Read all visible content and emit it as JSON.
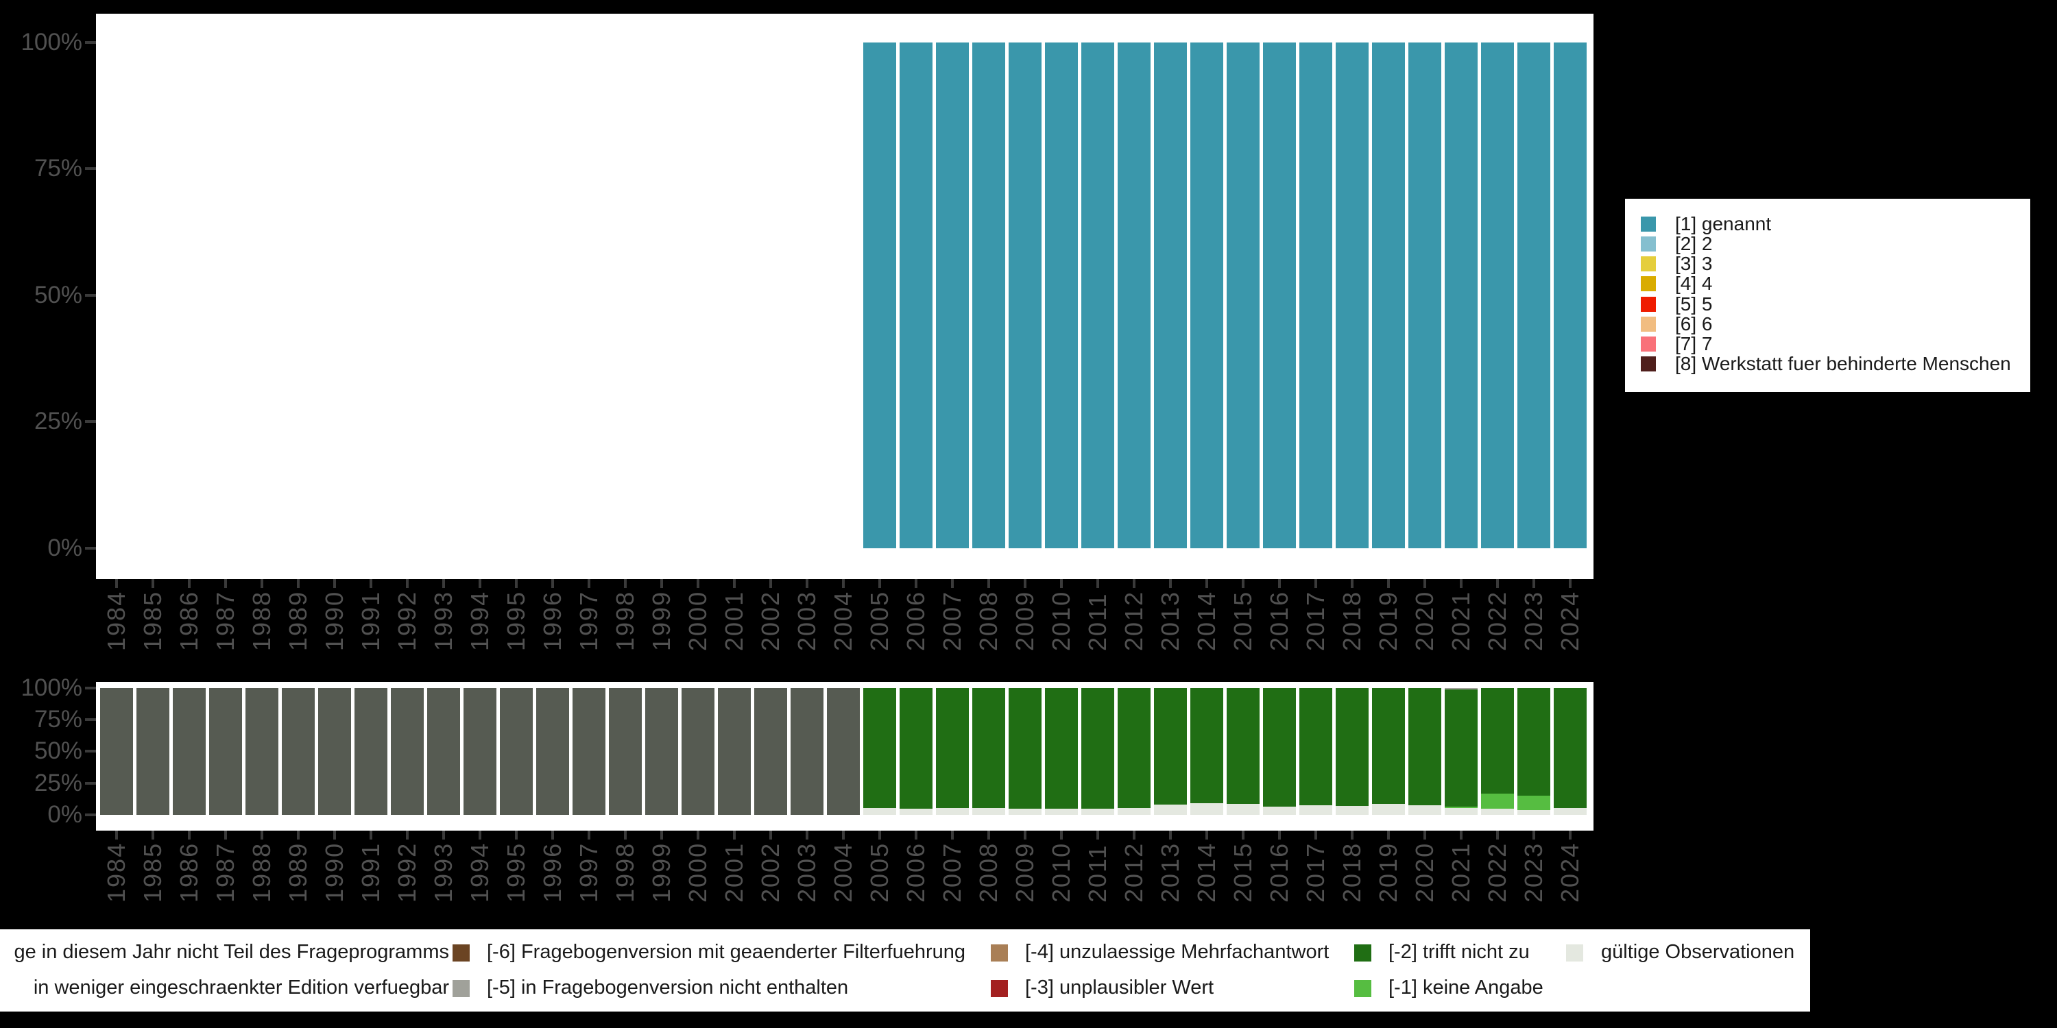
{
  "years": [
    "1984",
    "1985",
    "1986",
    "1987",
    "1988",
    "1989",
    "1990",
    "1991",
    "1992",
    "1993",
    "1994",
    "1995",
    "1996",
    "1997",
    "1998",
    "1999",
    "2000",
    "2001",
    "2002",
    "2003",
    "2004",
    "2005",
    "2006",
    "2007",
    "2008",
    "2009",
    "2010",
    "2011",
    "2012",
    "2013",
    "2014",
    "2015",
    "2016",
    "2017",
    "2018",
    "2019",
    "2020",
    "2021",
    "2022",
    "2023",
    "2024"
  ],
  "y_tick_labels": [
    "100%",
    "75%",
    "50%",
    "25%",
    "0%"
  ],
  "colors": {
    "background": "#000000",
    "panel": "#ffffff",
    "axis_text": "#515151",
    "tick_mark": "#3a3a3a",
    "legend_text": "#1a1a1a"
  },
  "top_legend": {
    "items": [
      {
        "label": "[1] genannt",
        "color": "#3A97AB"
      },
      {
        "label": "[2] 2",
        "color": "#85BFCF"
      },
      {
        "label": "[3] 3",
        "color": "#E5CE3C"
      },
      {
        "label": "[4] 4",
        "color": "#D9AC00"
      },
      {
        "label": "[5] 5",
        "color": "#EF1C00"
      },
      {
        "label": "[6] 6",
        "color": "#F1BD81"
      },
      {
        "label": "[7] 7",
        "color": "#F97179"
      },
      {
        "label": "[8] Werkstatt fuer behinderte Menschen",
        "color": "#4F1F1C"
      }
    ]
  },
  "bottom_legend": {
    "rows": [
      [
        {
          "label": "ge in diesem Jahr nicht Teil des Frageprogramms",
          "color": null,
          "col": 0
        },
        {
          "label": "[-6] Fragebogenversion mit geaenderter Filterfuehrung",
          "color": "#6B4423",
          "col": 1
        },
        {
          "label": "[-4] unzulaessige Mehrfachantwort",
          "color": "#A97F56",
          "col": 2
        },
        {
          "label": "[-2] trifft nicht zu",
          "color": "#206E14",
          "col": 3
        },
        {
          "label": "gültige Observationen",
          "color": "#E4E8E0",
          "col": 4
        }
      ],
      [
        {
          "label": "in weniger eingeschraenkter Edition verfuegbar",
          "color": null,
          "col": 0
        },
        {
          "label": "[-5] in Fragebogenversion nicht enthalten",
          "color": "#A0A19A",
          "col": 1
        },
        {
          "label": "[-3] unplausibler Wert",
          "color": "#A32020",
          "col": 2
        },
        {
          "label": "[-1] keine Angabe",
          "color": "#56BD41",
          "col": 3
        }
      ]
    ]
  },
  "chart_data": [
    {
      "type": "bar",
      "stacked": true,
      "stack_order": "bottom_to_top",
      "title": "",
      "xlabel": "",
      "ylabel": "",
      "ylim": [
        0,
        100
      ],
      "y_ticks_percent": [
        0,
        25,
        50,
        75,
        100
      ],
      "grid": false,
      "legend_position": "right",
      "categories": [
        "1984",
        "1985",
        "1986",
        "1987",
        "1988",
        "1989",
        "1990",
        "1991",
        "1992",
        "1993",
        "1994",
        "1995",
        "1996",
        "1997",
        "1998",
        "1999",
        "2000",
        "2001",
        "2002",
        "2003",
        "2004",
        "2005",
        "2006",
        "2007",
        "2008",
        "2009",
        "2010",
        "2011",
        "2012",
        "2013",
        "2014",
        "2015",
        "2016",
        "2017",
        "2018",
        "2019",
        "2020",
        "2021",
        "2022",
        "2023",
        "2024"
      ],
      "series": [
        {
          "name": "[1] genannt",
          "color": "#3A97AB",
          "values": [
            0,
            0,
            0,
            0,
            0,
            0,
            0,
            0,
            0,
            0,
            0,
            0,
            0,
            0,
            0,
            0,
            0,
            0,
            0,
            0,
            0,
            100,
            100,
            100,
            100,
            100,
            100,
            100,
            100,
            100,
            100,
            100,
            100,
            100,
            100,
            100,
            100,
            100,
            100,
            100,
            100
          ]
        }
      ]
    },
    {
      "type": "bar",
      "stacked": true,
      "stack_order": "bottom_to_top",
      "title": "",
      "xlabel": "",
      "ylabel": "",
      "ylim": [
        0,
        100
      ],
      "y_ticks_percent": [
        0,
        25,
        50,
        75,
        100
      ],
      "grid": false,
      "legend_position": "bottom",
      "categories": [
        "1984",
        "1985",
        "1986",
        "1987",
        "1988",
        "1989",
        "1990",
        "1991",
        "1992",
        "1993",
        "1994",
        "1995",
        "1996",
        "1997",
        "1998",
        "1999",
        "2000",
        "2001",
        "2002",
        "2003",
        "2004",
        "2005",
        "2006",
        "2007",
        "2008",
        "2009",
        "2010",
        "2011",
        "2012",
        "2013",
        "2014",
        "2015",
        "2016",
        "2017",
        "2018",
        "2019",
        "2020",
        "2021",
        "2022",
        "2023",
        "2024"
      ],
      "series": [
        {
          "name": "gültige Observationen",
          "color": "#E4E8E0",
          "values": [
            0,
            0,
            0,
            0,
            0,
            0,
            0,
            0,
            0,
            0,
            0,
            0,
            0,
            0,
            0,
            0,
            0,
            0,
            0,
            0,
            0,
            5.4,
            5,
            5.2,
            5.2,
            5,
            5,
            5,
            5.5,
            8,
            9,
            8.5,
            6.5,
            7.5,
            7,
            8.5,
            7.5,
            5.5,
            5,
            4,
            5.5
          ]
        },
        {
          "name": "[-1] keine Angabe",
          "color": "#56BD41",
          "values": [
            0,
            0,
            0,
            0,
            0,
            0,
            0,
            0,
            0,
            0,
            0,
            0,
            0,
            0,
            0,
            0,
            0,
            0,
            0,
            0,
            0,
            0,
            0,
            0,
            0,
            0,
            0,
            0,
            0,
            0,
            0,
            0,
            0,
            0,
            0,
            0,
            0,
            1,
            12,
            11,
            0
          ]
        },
        {
          "name": "[-2] trifft nicht zu",
          "color": "#206E14",
          "values": [
            0,
            0,
            0,
            0,
            0,
            0,
            0,
            0,
            0,
            0,
            0,
            0,
            0,
            0,
            0,
            0,
            0,
            0,
            0,
            0,
            0,
            94.6,
            95,
            94.8,
            94.8,
            95,
            95,
            95,
            94.5,
            92,
            91,
            91.5,
            93.5,
            92.5,
            93,
            91.5,
            92.5,
            92.5,
            83,
            85,
            94.5
          ]
        },
        {
          "name": "[-5] in Fragebogenversion nicht enthalten",
          "color": "#A0A19A",
          "values": [
            0,
            0,
            0,
            0,
            0,
            0,
            0,
            0,
            0,
            0,
            0,
            0,
            0,
            0,
            0,
            0,
            0,
            0,
            0,
            0,
            0,
            0,
            0,
            0,
            0,
            0,
            0,
            0,
            0,
            0,
            0,
            0,
            0,
            0,
            0,
            0,
            0,
            1,
            0,
            0,
            0
          ]
        },
        {
          "name": "Frage in diesem Jahr nicht Teil des Frageprogramms",
          "color": "#565B52",
          "values": [
            100,
            100,
            100,
            100,
            100,
            100,
            100,
            100,
            100,
            100,
            100,
            100,
            100,
            100,
            100,
            100,
            100,
            100,
            100,
            100,
            100,
            0,
            0,
            0,
            0,
            0,
            0,
            0,
            0,
            0,
            0,
            0,
            0,
            0,
            0,
            0,
            0,
            0,
            0,
            0,
            0
          ]
        }
      ]
    }
  ]
}
